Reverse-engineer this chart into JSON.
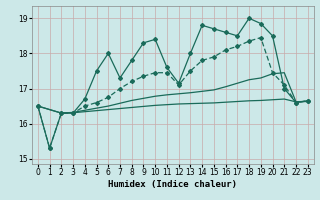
{
  "xlabel": "Humidex (Indice chaleur)",
  "bg_color": "#cce8e8",
  "grid_color": "#c8aaaa",
  "line_color": "#1a6b5a",
  "xlim": [
    -0.5,
    23.5
  ],
  "ylim": [
    14.85,
    19.35
  ],
  "yticks": [
    15,
    16,
    17,
    18,
    19
  ],
  "xticks": [
    0,
    1,
    2,
    3,
    4,
    5,
    6,
    7,
    8,
    9,
    10,
    11,
    12,
    13,
    14,
    15,
    16,
    17,
    18,
    19,
    20,
    21,
    22,
    23
  ],
  "line1_x": [
    0,
    1,
    2,
    3,
    4,
    5,
    6,
    7,
    8,
    9,
    10,
    11,
    12,
    13,
    14,
    15,
    16,
    17,
    18,
    19,
    20,
    21,
    22,
    23
  ],
  "line1_y": [
    16.5,
    15.3,
    16.3,
    16.3,
    16.7,
    17.5,
    18.0,
    17.3,
    17.8,
    18.3,
    18.4,
    17.6,
    17.15,
    18.0,
    18.8,
    18.7,
    18.6,
    18.5,
    19.0,
    18.85,
    18.5,
    17.0,
    16.6,
    16.65
  ],
  "line2_x": [
    0,
    1,
    2,
    3,
    4,
    5,
    6,
    7,
    8,
    9,
    10,
    11,
    12,
    13,
    14,
    15,
    16,
    17,
    18,
    19,
    20,
    21,
    22,
    23
  ],
  "line2_y": [
    16.5,
    15.3,
    16.3,
    16.3,
    16.5,
    16.6,
    16.75,
    17.0,
    17.2,
    17.35,
    17.45,
    17.45,
    17.1,
    17.5,
    17.8,
    17.9,
    18.1,
    18.2,
    18.35,
    18.45,
    17.45,
    17.1,
    16.6,
    16.65
  ],
  "line3_x": [
    0,
    2,
    3,
    4,
    5,
    6,
    7,
    8,
    9,
    10,
    11,
    12,
    13,
    14,
    15,
    16,
    17,
    18,
    19,
    20,
    21,
    22,
    23
  ],
  "line3_y": [
    16.5,
    16.3,
    16.32,
    16.38,
    16.44,
    16.5,
    16.58,
    16.66,
    16.72,
    16.78,
    16.82,
    16.85,
    16.88,
    16.92,
    16.96,
    17.05,
    17.15,
    17.25,
    17.3,
    17.42,
    17.45,
    16.62,
    16.64
  ],
  "line4_x": [
    0,
    2,
    3,
    4,
    5,
    6,
    7,
    8,
    9,
    10,
    11,
    12,
    13,
    14,
    15,
    16,
    17,
    18,
    19,
    20,
    21,
    22,
    23
  ],
  "line4_y": [
    16.5,
    16.3,
    16.31,
    16.34,
    16.37,
    16.4,
    16.43,
    16.46,
    16.49,
    16.52,
    16.54,
    16.56,
    16.57,
    16.58,
    16.59,
    16.61,
    16.63,
    16.65,
    16.66,
    16.68,
    16.7,
    16.62,
    16.63
  ]
}
